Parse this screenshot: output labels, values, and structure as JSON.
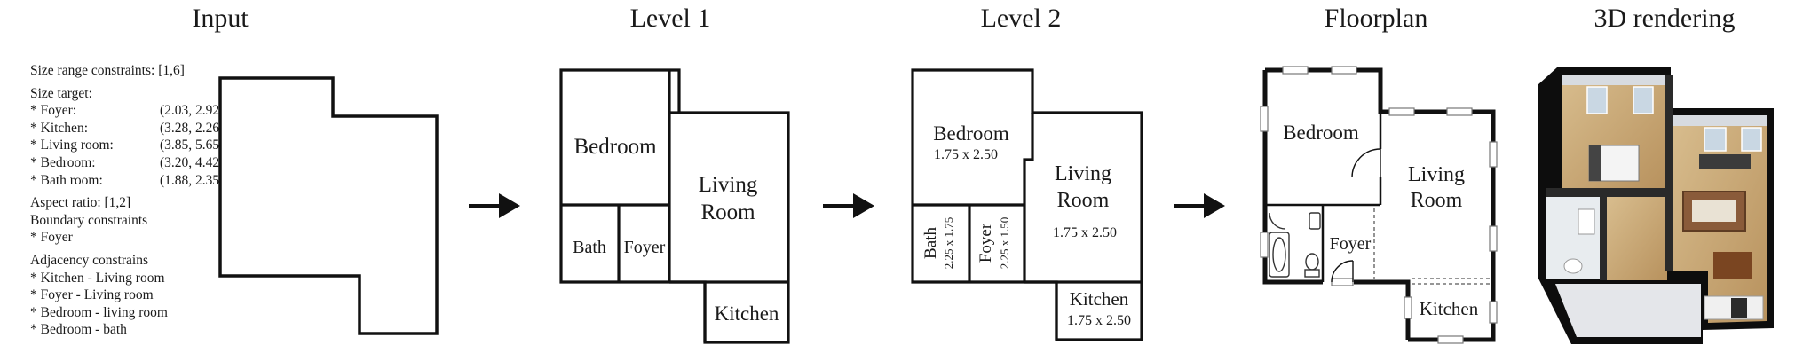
{
  "panels": {
    "input": "Input",
    "level1": "Level 1",
    "level2": "Level 2",
    "floorplan": "Floorplan",
    "rendering": "3D rendering"
  },
  "constraints": {
    "size_range": "Size range constraints: [1,6]",
    "size_target_header": "Size target:",
    "size_targets": [
      {
        "label": "* Foyer:",
        "value": "(2.03, 2.92)"
      },
      {
        "label": "* Kitchen:",
        "value": "(3.28, 2.26)"
      },
      {
        "label": "* Living room:",
        "value": "(3.85, 5.65)"
      },
      {
        "label": "* Bedroom:",
        "value": "(3.20, 4.42)"
      },
      {
        "label": "* Bath room:",
        "value": "(1.88, 2.35)"
      }
    ],
    "aspect_ratio": "Aspect ratio: [1,2]",
    "boundary_header": "Boundary constraints",
    "boundary_items": [
      "* Foyer"
    ],
    "adjacency_header": "Adjacency constrains",
    "adjacency_items": [
      "* Kitchen - Living room",
      "* Foyer - Living room",
      "* Bedroom - living room",
      "* Bedroom - bath"
    ]
  },
  "level1_rooms": {
    "bedroom": "Bedroom",
    "living_1": "Living",
    "living_2": "Room",
    "bath": "Bath",
    "foyer": "Foyer",
    "kitchen": "Kitchen"
  },
  "level2_rooms": {
    "bedroom": "Bedroom",
    "bedroom_size": "1.75 x 2.50",
    "living_1": "Living",
    "living_2": "Room",
    "living_size": "1.75 x 2.50",
    "bath": "Bath",
    "bath_size": "2.25 x 1.75",
    "foyer": "Foyer",
    "foyer_size": "2.25 x 1.50",
    "kitchen": "Kitchen",
    "kitchen_size": "1.75 x 2.50"
  },
  "floorplan_rooms": {
    "bedroom": "Bedroom",
    "living_1": "Living",
    "living_2": "Room",
    "foyer": "Foyer",
    "kitchen": "Kitchen"
  },
  "colors": {
    "line": "#111111",
    "floor_wood": "#c9a877",
    "wall_top": "#0d0d0d",
    "wall_side": "#d7dbe0"
  }
}
